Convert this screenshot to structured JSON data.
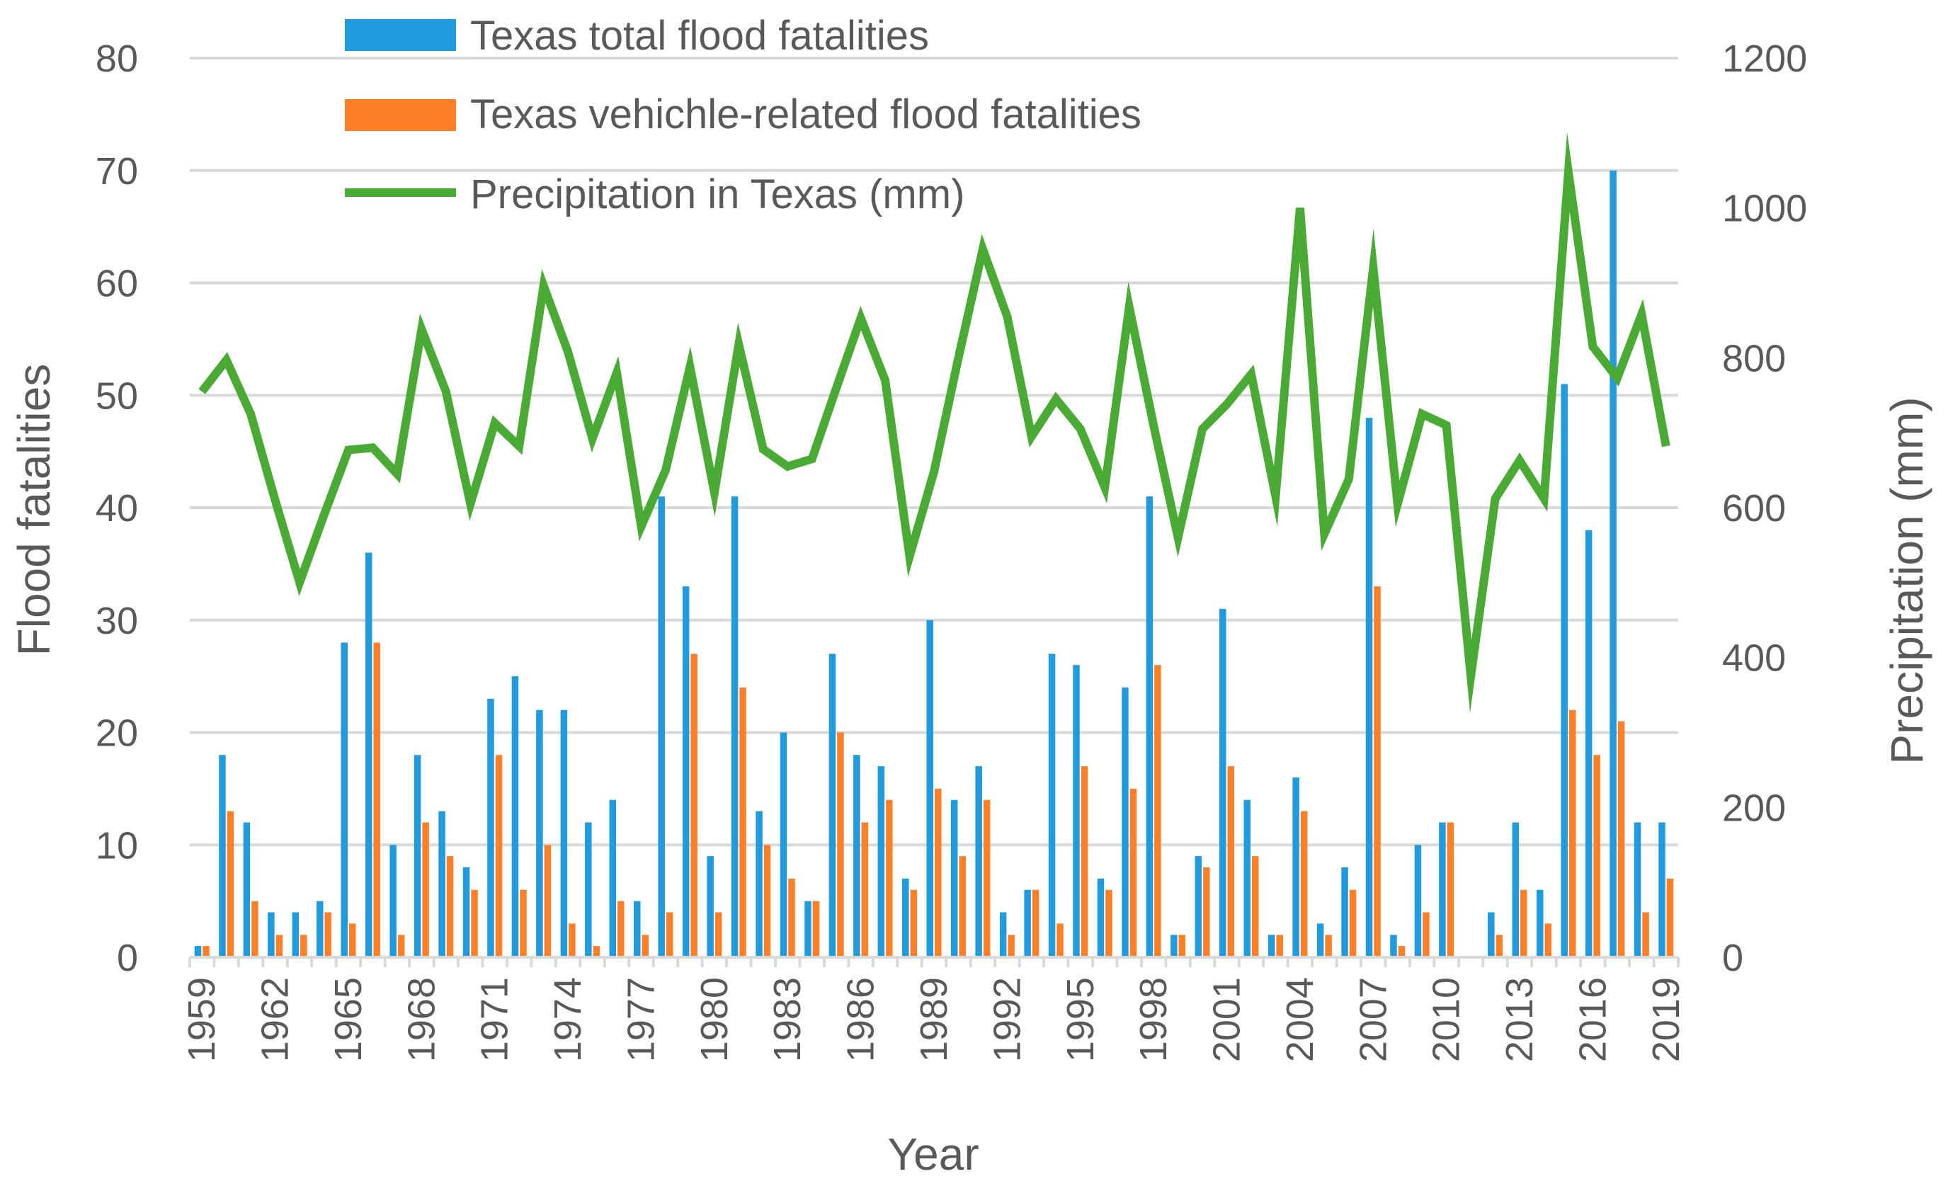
{
  "chart_data": {
    "type": "bar+line",
    "categories": [
      1959,
      1960,
      1961,
      1962,
      1963,
      1964,
      1965,
      1966,
      1967,
      1968,
      1969,
      1970,
      1971,
      1972,
      1973,
      1974,
      1975,
      1976,
      1977,
      1978,
      1979,
      1980,
      1981,
      1982,
      1983,
      1984,
      1985,
      1986,
      1987,
      1988,
      1989,
      1990,
      1991,
      1992,
      1993,
      1994,
      1995,
      1996,
      1997,
      1998,
      1999,
      2000,
      2001,
      2002,
      2003,
      2004,
      2005,
      2006,
      2007,
      2008,
      2009,
      2010,
      2011,
      2012,
      2013,
      2014,
      2015,
      2016,
      2017,
      2018,
      2019
    ],
    "x_tick_labels": [
      "1959",
      "1962",
      "1965",
      "1968",
      "1971",
      "1974",
      "1977",
      "1980",
      "1983",
      "1986",
      "1989",
      "1992",
      "1995",
      "1998",
      "2001",
      "2004",
      "2007",
      "2010",
      "2013",
      "2016",
      "2019"
    ],
    "series": [
      {
        "name": "Texas total flood fatalities",
        "type": "bar",
        "axis": "left",
        "color": "#1f9bde",
        "values": [
          1,
          18,
          12,
          4,
          4,
          5,
          28,
          36,
          10,
          18,
          13,
          8,
          23,
          25,
          22,
          22,
          12,
          14,
          5,
          41,
          33,
          9,
          41,
          13,
          20,
          5,
          27,
          18,
          17,
          7,
          30,
          14,
          17,
          4,
          6,
          27,
          26,
          7,
          24,
          41,
          2,
          9,
          31,
          14,
          2,
          16,
          3,
          8,
          48,
          2,
          10,
          12,
          0,
          4,
          12,
          6,
          51,
          38,
          70,
          12,
          12
        ]
      },
      {
        "name": "Texas vehichle-related flood fatalities",
        "type": "bar",
        "axis": "left",
        "color": "#ff7f27",
        "values": [
          1,
          13,
          5,
          2,
          2,
          4,
          3,
          28,
          2,
          12,
          9,
          6,
          18,
          6,
          10,
          3,
          1,
          5,
          2,
          4,
          27,
          4,
          24,
          10,
          7,
          5,
          20,
          12,
          14,
          6,
          15,
          9,
          14,
          2,
          6,
          3,
          17,
          6,
          15,
          26,
          2,
          8,
          17,
          9,
          2,
          13,
          2,
          6,
          33,
          1,
          4,
          12,
          0,
          2,
          6,
          3,
          22,
          18,
          21,
          4,
          7
        ]
      },
      {
        "name": "Precipitation in Texas (mm)",
        "type": "line",
        "axis": "right",
        "color": "#4aab34",
        "values": [
          755,
          797,
          725,
          610,
          500,
          590,
          677,
          680,
          645,
          838,
          755,
          605,
          713,
          682,
          896,
          808,
          692,
          780,
          575,
          650,
          788,
          620,
          818,
          678,
          655,
          665,
          760,
          853,
          770,
          535,
          648,
          800,
          945,
          855,
          695,
          745,
          705,
          627,
          868,
          710,
          560,
          705,
          738,
          778,
          615,
          1000,
          565,
          638,
          920,
          605,
          725,
          710,
          375,
          612,
          663,
          612,
          1048,
          815,
          773,
          858,
          682
        ]
      }
    ],
    "title": "",
    "xlabel": "Year",
    "ylabel": "Flood fatalities",
    "ylabel_right": "Precipitation (mm)",
    "ylim": [
      0,
      80
    ],
    "ylim_right": [
      0,
      1200
    ],
    "y_ticks": [
      "0",
      "10",
      "20",
      "30",
      "40",
      "50",
      "60",
      "70",
      "80"
    ],
    "y_ticks_right": [
      "0",
      "200",
      "400",
      "600",
      "800",
      "1000",
      "1200"
    ],
    "grid": true,
    "legend_position": "top-center"
  }
}
